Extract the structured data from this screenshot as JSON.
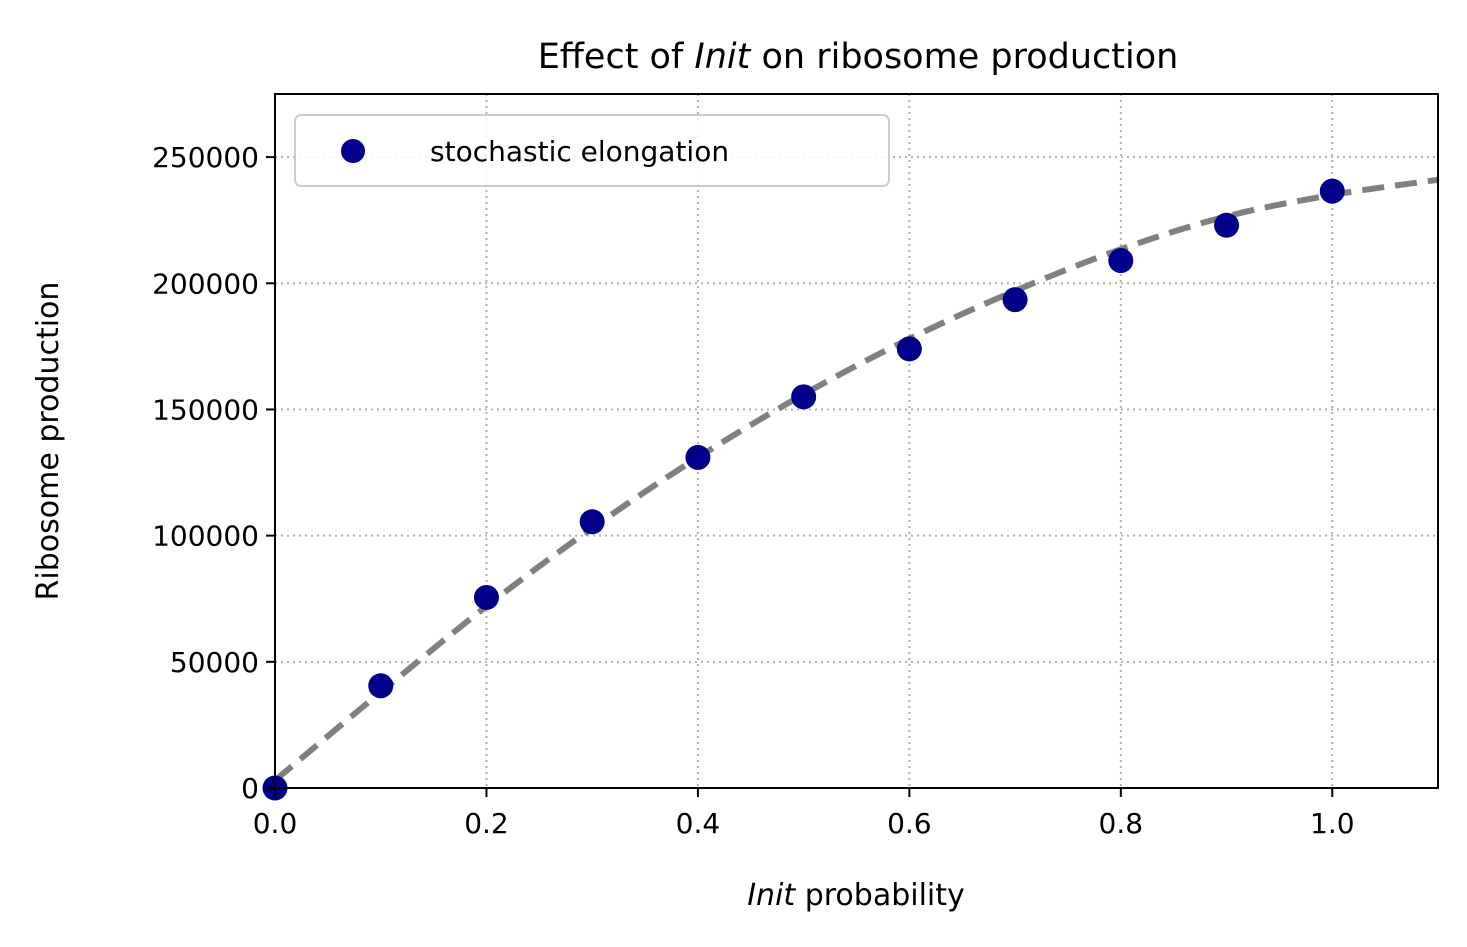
{
  "chart_data": {
    "type": "scatter",
    "title": {
      "prefix": "Effect of ",
      "emphasis": "Init",
      "suffix": " on ribosome production"
    },
    "xlabel": {
      "emphasis": "Init",
      "suffix": " probability"
    },
    "ylabel": "Ribosome production",
    "xlim": [
      0,
      1.1
    ],
    "ylim": [
      0,
      275000
    ],
    "xticks": [
      0.0,
      0.2,
      0.4,
      0.6,
      0.8,
      1.0
    ],
    "xtick_labels": [
      "0.0",
      "0.2",
      "0.4",
      "0.6",
      "0.8",
      "1.0"
    ],
    "yticks": [
      0,
      50000,
      100000,
      150000,
      200000,
      250000
    ],
    "ytick_labels": [
      "0",
      "50000",
      "100000",
      "150000",
      "200000",
      "250000"
    ],
    "grid": true,
    "legend_placement": "top-left",
    "series": [
      {
        "name": "stochastic elongation",
        "kind": "scatter",
        "color": "#00008b",
        "x": [
          0.0,
          0.1,
          0.2,
          0.3,
          0.4,
          0.5,
          0.6,
          0.7,
          0.8,
          0.9,
          1.0
        ],
        "y": [
          0,
          40500,
          75500,
          105500,
          131000,
          155000,
          174000,
          193500,
          209000,
          223000,
          236500
        ]
      },
      {
        "kind": "dashed-line",
        "color": "#808080",
        "x": [
          0.0,
          0.1,
          0.2,
          0.3,
          0.4,
          0.5,
          0.6,
          0.7,
          0.8,
          0.9,
          1.0,
          1.1
        ],
        "y": [
          3000,
          38000,
          72000,
          103000,
          131000,
          156000,
          178000,
          197000,
          213500,
          226500,
          235000,
          241000
        ]
      }
    ]
  }
}
